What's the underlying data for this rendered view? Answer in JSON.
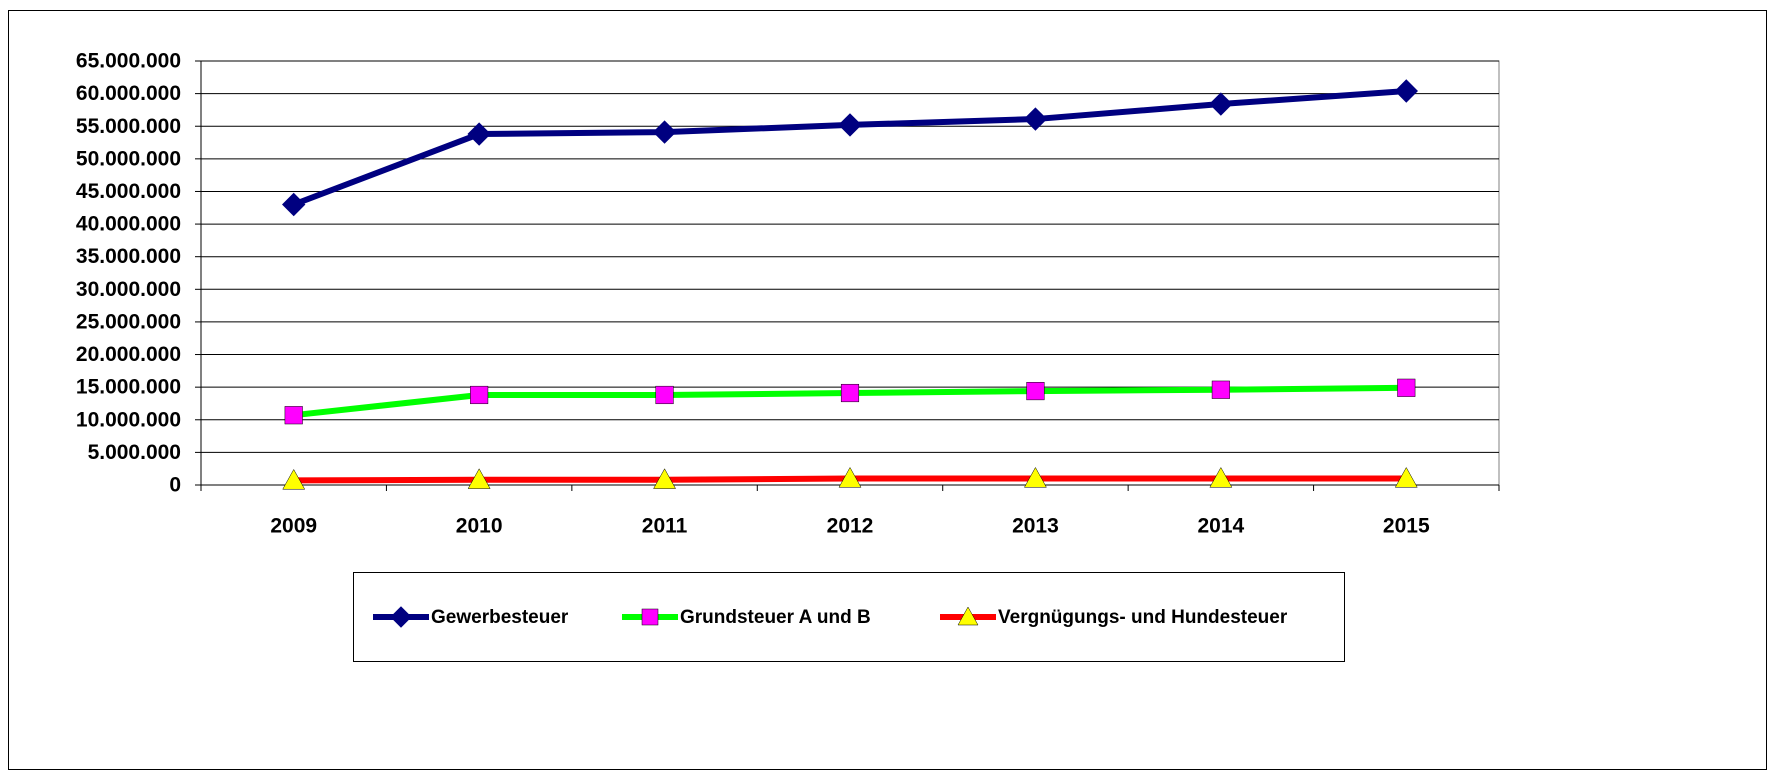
{
  "chart_data": {
    "type": "line",
    "categories": [
      "2009",
      "2010",
      "2011",
      "2012",
      "2013",
      "2014",
      "2015"
    ],
    "series": [
      {
        "name": "Gewerbesteuer",
        "color": "#000080",
        "marker": "diamond",
        "marker_color": "#000080",
        "values": [
          43000000,
          53800000,
          54100000,
          55200000,
          56100000,
          58400000,
          60400000
        ]
      },
      {
        "name": "Grundsteuer A und B",
        "color": "#00ff00",
        "marker": "square",
        "marker_color": "#ff00ff",
        "values": [
          10700000,
          13800000,
          13800000,
          14100000,
          14400000,
          14600000,
          14900000
        ]
      },
      {
        "name": "Vergnügungs- und Hundesteuer",
        "color": "#ff0000",
        "marker": "triangle",
        "marker_color": "#ffff00",
        "values": [
          700000,
          800000,
          800000,
          1000000,
          1000000,
          1000000,
          1000000
        ]
      }
    ],
    "ylim": [
      0,
      65000000
    ],
    "yticks": [
      0,
      {
        "value": 5000000,
        "label": "5.000.000"
      },
      {
        "value": 10000000,
        "label": "10.000.000"
      },
      {
        "value": 15000000,
        "label": "15.000.000"
      },
      {
        "value": 20000000,
        "label": "20.000.000"
      },
      {
        "value": 25000000,
        "label": "25.000.000"
      },
      {
        "value": 30000000,
        "label": "30.000.000"
      },
      {
        "value": 35000000,
        "label": "35.000.000"
      },
      {
        "value": 40000000,
        "label": "40.000.000"
      },
      {
        "value": 45000000,
        "label": "45.000.000"
      },
      {
        "value": 50000000,
        "label": "50.000.000"
      },
      {
        "value": 55000000,
        "label": "55.000.000"
      },
      {
        "value": 60000000,
        "label": "60.000.000"
      },
      {
        "value": 65000000,
        "label": "65.000.000"
      }
    ],
    "grid": true,
    "legend": "bottom"
  }
}
